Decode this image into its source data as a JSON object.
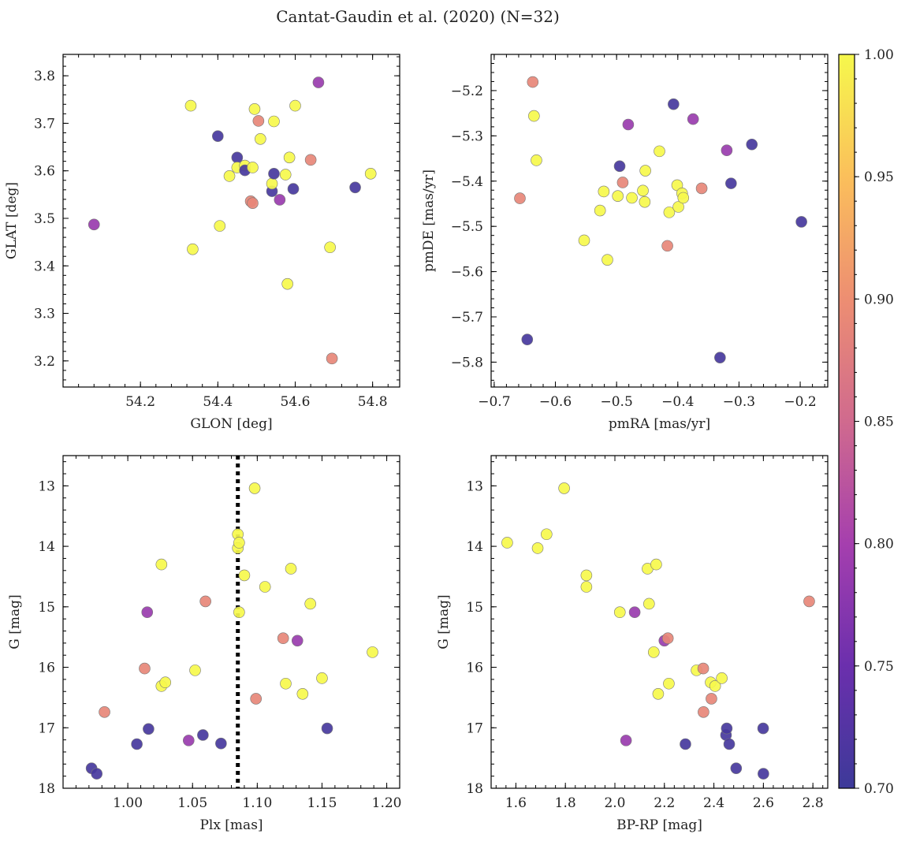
{
  "title": "Cantat-Gaudin et al. (2020) (N=32)",
  "colorbar": {
    "min": 0.7,
    "max": 1.0,
    "ticks": [
      0.7,
      0.75,
      0.8,
      0.85,
      0.9,
      0.95,
      1.0
    ],
    "tick_labels": [
      "0.70",
      "0.75",
      "0.80",
      "0.85",
      "0.90",
      "0.95",
      "1.00"
    ]
  },
  "chart_data": [
    {
      "type": "scatter",
      "xlabel": "GLON [deg]",
      "ylabel": "GLAT [deg]",
      "xlim": [
        54.0,
        54.87
      ],
      "ylim": [
        3.145,
        3.845
      ],
      "xticks": [
        54.2,
        54.4,
        54.6,
        54.8
      ],
      "xtick_labels": [
        "54.2",
        "54.4",
        "54.6",
        "54.8"
      ],
      "yticks": [
        3.2,
        3.3,
        3.4,
        3.5,
        3.6,
        3.7,
        3.8
      ],
      "ytick_labels": [
        "3.2",
        "3.3",
        "3.4",
        "3.5",
        "3.6",
        "3.7",
        "3.8"
      ],
      "points": [
        {
          "x": 54.08,
          "y": 3.487,
          "c": 0.79
        },
        {
          "x": 54.33,
          "y": 3.737,
          "c": 1.0
        },
        {
          "x": 54.335,
          "y": 3.435,
          "c": 1.0
        },
        {
          "x": 54.4,
          "y": 3.673,
          "c": 0.71
        },
        {
          "x": 54.405,
          "y": 3.484,
          "c": 1.0
        },
        {
          "x": 54.43,
          "y": 3.589,
          "c": 1.0
        },
        {
          "x": 54.45,
          "y": 3.628,
          "c": 0.71
        },
        {
          "x": 54.45,
          "y": 3.607,
          "c": 1.0
        },
        {
          "x": 54.47,
          "y": 3.611,
          "c": 1.0
        },
        {
          "x": 54.47,
          "y": 3.601,
          "c": 0.71
        },
        {
          "x": 54.485,
          "y": 3.536,
          "c": 0.89
        },
        {
          "x": 54.49,
          "y": 3.532,
          "c": 0.89
        },
        {
          "x": 54.49,
          "y": 3.607,
          "c": 1.0
        },
        {
          "x": 54.495,
          "y": 3.73,
          "c": 1.0
        },
        {
          "x": 54.505,
          "y": 3.705,
          "c": 0.89
        },
        {
          "x": 54.51,
          "y": 3.667,
          "c": 1.0
        },
        {
          "x": 54.54,
          "y": 3.557,
          "c": 0.71
        },
        {
          "x": 54.54,
          "y": 3.573,
          "c": 1.0
        },
        {
          "x": 54.545,
          "y": 3.594,
          "c": 0.71
        },
        {
          "x": 54.545,
          "y": 3.704,
          "c": 1.0
        },
        {
          "x": 54.56,
          "y": 3.539,
          "c": 0.79
        },
        {
          "x": 54.575,
          "y": 3.592,
          "c": 1.0
        },
        {
          "x": 54.58,
          "y": 3.362,
          "c": 1.0
        },
        {
          "x": 54.585,
          "y": 3.628,
          "c": 1.0
        },
        {
          "x": 54.595,
          "y": 3.562,
          "c": 0.71
        },
        {
          "x": 54.6,
          "y": 3.737,
          "c": 1.0
        },
        {
          "x": 54.64,
          "y": 3.623,
          "c": 0.89
        },
        {
          "x": 54.66,
          "y": 3.786,
          "c": 0.79
        },
        {
          "x": 54.69,
          "y": 3.439,
          "c": 1.0
        },
        {
          "x": 54.695,
          "y": 3.205,
          "c": 0.89
        },
        {
          "x": 54.755,
          "y": 3.565,
          "c": 0.71
        },
        {
          "x": 54.795,
          "y": 3.594,
          "c": 1.0
        }
      ]
    },
    {
      "type": "scatter",
      "xlabel": "pmRA [mas/yr]",
      "ylabel": "pmDE [mas/yr]",
      "xlim": [
        -0.705,
        -0.155
      ],
      "ylim": [
        -5.855,
        -5.12
      ],
      "xticks": [
        -0.7,
        -0.6,
        -0.5,
        -0.4,
        -0.3,
        -0.2
      ],
      "xtick_labels": [
        "−0.7",
        "−0.6",
        "−0.5",
        "−0.4",
        "−0.3",
        "−0.2"
      ],
      "yticks": [
        -5.8,
        -5.7,
        -5.6,
        -5.5,
        -5.4,
        -5.3,
        -5.2
      ],
      "ytick_labels": [
        "−5.8",
        "−5.7",
        "−5.6",
        "−5.5",
        "−5.4",
        "−5.3",
        "−5.2"
      ],
      "points": [
        {
          "x": -0.658,
          "y": -5.438,
          "c": 0.89
        },
        {
          "x": -0.646,
          "y": -5.75,
          "c": 0.71
        },
        {
          "x": -0.637,
          "y": -5.181,
          "c": 0.89
        },
        {
          "x": -0.635,
          "y": -5.256,
          "c": 1.0
        },
        {
          "x": -0.631,
          "y": -5.354,
          "c": 1.0
        },
        {
          "x": -0.553,
          "y": -5.531,
          "c": 1.0
        },
        {
          "x": -0.527,
          "y": -5.465,
          "c": 1.0
        },
        {
          "x": -0.521,
          "y": -5.423,
          "c": 1.0
        },
        {
          "x": -0.515,
          "y": -5.574,
          "c": 1.0
        },
        {
          "x": -0.498,
          "y": -5.433,
          "c": 1.0
        },
        {
          "x": -0.495,
          "y": -5.367,
          "c": 0.71
        },
        {
          "x": -0.49,
          "y": -5.403,
          "c": 0.89
        },
        {
          "x": -0.481,
          "y": -5.275,
          "c": 0.79
        },
        {
          "x": -0.475,
          "y": -5.437,
          "c": 1.0
        },
        {
          "x": -0.457,
          "y": -5.421,
          "c": 1.0
        },
        {
          "x": -0.454,
          "y": -5.446,
          "c": 1.0
        },
        {
          "x": -0.453,
          "y": -5.377,
          "c": 1.0
        },
        {
          "x": -0.43,
          "y": -5.334,
          "c": 1.0
        },
        {
          "x": -0.417,
          "y": -5.543,
          "c": 0.89
        },
        {
          "x": -0.414,
          "y": -5.469,
          "c": 1.0
        },
        {
          "x": -0.407,
          "y": -5.23,
          "c": 0.71
        },
        {
          "x": -0.401,
          "y": -5.409,
          "c": 1.0
        },
        {
          "x": -0.399,
          "y": -5.457,
          "c": 1.0
        },
        {
          "x": -0.393,
          "y": -5.427,
          "c": 1.0
        },
        {
          "x": -0.391,
          "y": -5.437,
          "c": 1.0
        },
        {
          "x": -0.375,
          "y": -5.263,
          "c": 0.79
        },
        {
          "x": -0.361,
          "y": -5.416,
          "c": 0.89
        },
        {
          "x": -0.331,
          "y": -5.79,
          "c": 0.71
        },
        {
          "x": -0.32,
          "y": -5.332,
          "c": 0.79
        },
        {
          "x": -0.313,
          "y": -5.405,
          "c": 0.71
        },
        {
          "x": -0.279,
          "y": -5.319,
          "c": 0.71
        },
        {
          "x": -0.198,
          "y": -5.49,
          "c": 0.71
        }
      ]
    },
    {
      "type": "scatter",
      "xlabel": "Plx [mas]",
      "ylabel": "G [mag]",
      "xlim": [
        0.95,
        1.21
      ],
      "ylim": [
        18.0,
        12.5
      ],
      "y_inverted": true,
      "xticks": [
        1.0,
        1.05,
        1.1,
        1.15,
        1.2
      ],
      "xtick_labels": [
        "1.00",
        "1.05",
        "1.10",
        "1.15",
        "1.20"
      ],
      "yticks": [
        13,
        14,
        15,
        16,
        17,
        18
      ],
      "ytick_labels": [
        "13",
        "14",
        "15",
        "16",
        "17",
        "18"
      ],
      "vline": {
        "x": 1.085,
        "style": "dotted"
      },
      "points": [
        {
          "x": 0.972,
          "y": 17.67,
          "c": 0.71
        },
        {
          "x": 0.976,
          "y": 17.76,
          "c": 0.71
        },
        {
          "x": 0.982,
          "y": 16.74,
          "c": 0.89
        },
        {
          "x": 1.007,
          "y": 17.27,
          "c": 0.71
        },
        {
          "x": 1.013,
          "y": 16.02,
          "c": 0.89
        },
        {
          "x": 1.015,
          "y": 15.09,
          "c": 0.79
        },
        {
          "x": 1.016,
          "y": 17.02,
          "c": 0.71
        },
        {
          "x": 1.026,
          "y": 14.3,
          "c": 1.0
        },
        {
          "x": 1.026,
          "y": 16.31,
          "c": 1.0
        },
        {
          "x": 1.029,
          "y": 16.25,
          "c": 1.0
        },
        {
          "x": 1.047,
          "y": 17.21,
          "c": 0.79
        },
        {
          "x": 1.052,
          "y": 16.05,
          "c": 1.0
        },
        {
          "x": 1.058,
          "y": 17.12,
          "c": 0.71
        },
        {
          "x": 1.06,
          "y": 14.91,
          "c": 0.89
        },
        {
          "x": 1.072,
          "y": 17.26,
          "c": 0.71
        },
        {
          "x": 1.085,
          "y": 13.8,
          "c": 1.0
        },
        {
          "x": 1.085,
          "y": 14.03,
          "c": 1.0
        },
        {
          "x": 1.086,
          "y": 13.94,
          "c": 1.0
        },
        {
          "x": 1.086,
          "y": 15.09,
          "c": 1.0
        },
        {
          "x": 1.09,
          "y": 14.48,
          "c": 1.0
        },
        {
          "x": 1.098,
          "y": 13.04,
          "c": 1.0
        },
        {
          "x": 1.099,
          "y": 16.52,
          "c": 0.89
        },
        {
          "x": 1.106,
          "y": 14.67,
          "c": 1.0
        },
        {
          "x": 1.12,
          "y": 15.52,
          "c": 0.89
        },
        {
          "x": 1.122,
          "y": 16.27,
          "c": 1.0
        },
        {
          "x": 1.126,
          "y": 14.37,
          "c": 1.0
        },
        {
          "x": 1.131,
          "y": 15.56,
          "c": 0.79
        },
        {
          "x": 1.135,
          "y": 16.44,
          "c": 1.0
        },
        {
          "x": 1.141,
          "y": 14.95,
          "c": 1.0
        },
        {
          "x": 1.15,
          "y": 16.18,
          "c": 1.0
        },
        {
          "x": 1.154,
          "y": 17.01,
          "c": 0.71
        },
        {
          "x": 1.189,
          "y": 15.75,
          "c": 1.0
        }
      ]
    },
    {
      "type": "scatter",
      "xlabel": "BP-RP [mag]",
      "ylabel": "G [mag]",
      "xlim": [
        1.5,
        2.86
      ],
      "ylim": [
        18.0,
        12.5
      ],
      "y_inverted": true,
      "xticks": [
        1.6,
        1.8,
        2.0,
        2.2,
        2.4,
        2.6,
        2.8
      ],
      "xtick_labels": [
        "1.6",
        "1.8",
        "2.0",
        "2.2",
        "2.4",
        "2.6",
        "2.8"
      ],
      "yticks": [
        13,
        14,
        15,
        16,
        17,
        18
      ],
      "ytick_labels": [
        "13",
        "14",
        "15",
        "16",
        "17",
        "18"
      ],
      "points": [
        {
          "x": 1.565,
          "y": 13.94,
          "c": 1.0
        },
        {
          "x": 1.688,
          "y": 14.03,
          "c": 1.0
        },
        {
          "x": 1.724,
          "y": 13.8,
          "c": 1.0
        },
        {
          "x": 1.795,
          "y": 13.04,
          "c": 1.0
        },
        {
          "x": 1.885,
          "y": 14.48,
          "c": 1.0
        },
        {
          "x": 1.885,
          "y": 14.67,
          "c": 1.0
        },
        {
          "x": 2.02,
          "y": 15.09,
          "c": 1.0
        },
        {
          "x": 2.045,
          "y": 17.21,
          "c": 0.79
        },
        {
          "x": 2.08,
          "y": 15.09,
          "c": 0.79
        },
        {
          "x": 2.132,
          "y": 14.37,
          "c": 1.0
        },
        {
          "x": 2.138,
          "y": 14.95,
          "c": 1.0
        },
        {
          "x": 2.157,
          "y": 15.75,
          "c": 1.0
        },
        {
          "x": 2.167,
          "y": 14.3,
          "c": 1.0
        },
        {
          "x": 2.175,
          "y": 16.44,
          "c": 1.0
        },
        {
          "x": 2.2,
          "y": 15.56,
          "c": 0.79
        },
        {
          "x": 2.214,
          "y": 15.52,
          "c": 0.89
        },
        {
          "x": 2.218,
          "y": 16.27,
          "c": 1.0
        },
        {
          "x": 2.285,
          "y": 17.27,
          "c": 0.71
        },
        {
          "x": 2.33,
          "y": 16.05,
          "c": 1.0
        },
        {
          "x": 2.357,
          "y": 16.02,
          "c": 0.89
        },
        {
          "x": 2.358,
          "y": 16.74,
          "c": 0.89
        },
        {
          "x": 2.387,
          "y": 16.25,
          "c": 1.0
        },
        {
          "x": 2.39,
          "y": 16.52,
          "c": 0.89
        },
        {
          "x": 2.405,
          "y": 16.31,
          "c": 1.0
        },
        {
          "x": 2.432,
          "y": 16.18,
          "c": 1.0
        },
        {
          "x": 2.449,
          "y": 17.12,
          "c": 0.71
        },
        {
          "x": 2.452,
          "y": 17.01,
          "c": 0.71
        },
        {
          "x": 2.462,
          "y": 17.27,
          "c": 0.71
        },
        {
          "x": 2.49,
          "y": 17.67,
          "c": 0.71
        },
        {
          "x": 2.599,
          "y": 17.01,
          "c": 0.71
        },
        {
          "x": 2.6,
          "y": 17.76,
          "c": 0.71
        },
        {
          "x": 2.785,
          "y": 14.91,
          "c": 0.89
        }
      ]
    }
  ]
}
